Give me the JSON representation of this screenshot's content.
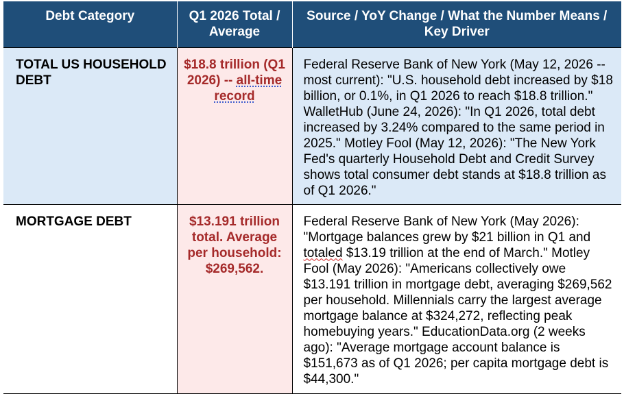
{
  "headers": {
    "category": "Debt Category",
    "total": "Q1 2026 Total / Average",
    "source": "Source / YoY Change / What the Number Means / Key Driver"
  },
  "rows": [
    {
      "category": "TOTAL US HOUSEHOLD DEBT",
      "value_main": "$18.8 trillion (Q1 2026) --",
      "value_underlined": "all-time record",
      "source": "Federal Reserve Bank of New York (May 12, 2026 -- most current): \"U.S. household debt increased by $18 billion, or 0.1%, in Q1 2026 to reach $18.8 trillion.\" WalletHub (June 24, 2026): \"In Q1 2026, total debt increased by 3.24% compared to the same period in 2025.\" Motley Fool (May 12, 2026): \"The New York Fed's quarterly Household Debt and Credit Survey shows total consumer debt stands at $18.8 trillion as of Q1 2026.\""
    },
    {
      "category": "MORTGAGE DEBT",
      "value_main": "$13.191 trillion total. Average per household: $269,562.",
      "source_before": "Federal Reserve Bank of New York (May 2026): \"Mortgage balances grew by $21 billion in Q1 and ",
      "source_flagged": "totaled",
      "source_after": " $13.19 trillion at the end of March.\" Motley Fool (May 2026): \"Americans collectively owe $13.191 trillion in mortgage debt, averaging $269,562 per household. Millennials carry the largest average mortgage balance at $324,272, reflecting peak homebuying years.\" EducationData.org (2 weeks ago): \"Average mortgage account balance is $151,673 as of Q1 2026; per capita mortgage debt is $44,300.\""
    }
  ],
  "colors": {
    "header_bg": "#1f4e79",
    "row1_bg": "#dbe9f7",
    "value_col_bg": "#fde9e9",
    "value_text": "#a52a2a"
  }
}
